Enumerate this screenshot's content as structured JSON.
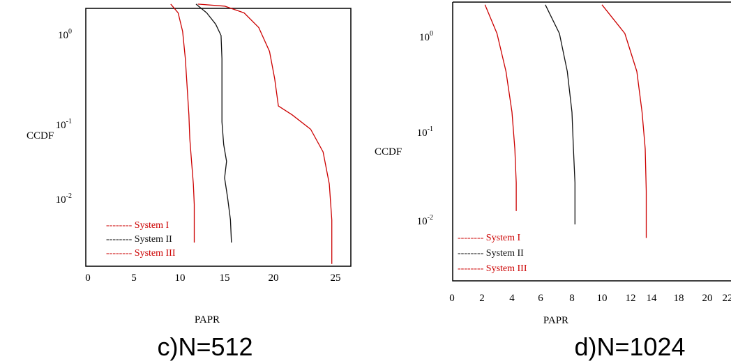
{
  "chart_data": [
    {
      "type": "line",
      "title": "c)N=512",
      "xlabel": "PAPR",
      "ylabel": "CCDF",
      "xticks": [
        "0",
        "5",
        "10",
        "15",
        "20",
        "25"
      ],
      "yticks": [
        {
          "base": "10",
          "exp": "0"
        },
        {
          "base": "10",
          "exp": "-1"
        },
        {
          "base": "10",
          "exp": "-2"
        }
      ],
      "yscale": "log",
      "legend_position": "bottom-left",
      "series": [
        {
          "name": "System I",
          "legend_label": "-------- System I",
          "color": "#cc0000",
          "points": [
            [
              9.0,
              2.0
            ],
            [
              9.8,
              1.6
            ],
            [
              10.3,
              1.0
            ],
            [
              10.6,
              0.5
            ],
            [
              10.8,
              0.25
            ],
            [
              11.0,
              0.12
            ],
            [
              11.1,
              0.06
            ],
            [
              11.3,
              0.03
            ],
            [
              11.5,
              0.015
            ],
            [
              11.6,
              0.008
            ],
            [
              11.6,
              0.0025
            ]
          ]
        },
        {
          "name": "System II",
          "legend_label": "-------- System II",
          "color": "#111111",
          "points": [
            [
              11.8,
              2.0
            ],
            [
              13.0,
              1.6
            ],
            [
              14.0,
              1.2
            ],
            [
              14.6,
              0.9
            ],
            [
              14.7,
              0.5
            ],
            [
              14.7,
              0.2
            ],
            [
              14.7,
              0.1
            ],
            [
              14.9,
              0.05
            ],
            [
              15.2,
              0.03
            ],
            [
              15.0,
              0.018
            ],
            [
              15.3,
              0.01
            ],
            [
              15.6,
              0.005
            ],
            [
              15.7,
              0.0025
            ]
          ]
        },
        {
          "name": "System III",
          "legend_label": "-------- System III",
          "color": "#cc0000",
          "points": [
            [
              12.0,
              2.0
            ],
            [
              15.0,
              1.9
            ],
            [
              17.0,
              1.6
            ],
            [
              18.5,
              1.1
            ],
            [
              19.6,
              0.6
            ],
            [
              20.1,
              0.3
            ],
            [
              20.4,
              0.15
            ],
            [
              21.5,
              0.12
            ],
            [
              23.0,
              0.08
            ],
            [
              24.0,
              0.04
            ],
            [
              24.5,
              0.015
            ],
            [
              24.7,
              0.005
            ],
            [
              24.7,
              0.0013
            ]
          ]
        }
      ]
    },
    {
      "type": "line",
      "title": "d)N=1024",
      "xlabel": "PAPR",
      "ylabel": "CCDF",
      "xticks": [
        "0",
        "2",
        "4",
        "6",
        "8",
        "10",
        "12",
        "14",
        "18",
        "20",
        "22"
      ],
      "yticks": [
        {
          "base": "10",
          "exp": "0"
        },
        {
          "base": "10",
          "exp": "-1"
        },
        {
          "base": "10",
          "exp": "-2"
        }
      ],
      "yscale": "log",
      "legend_position": "bottom-left",
      "series": [
        {
          "name": "System I",
          "legend_label": "-------- System I",
          "color": "#cc0000",
          "points": [
            [
              2.2,
              2.0
            ],
            [
              3.0,
              1.0
            ],
            [
              3.6,
              0.4
            ],
            [
              4.0,
              0.15
            ],
            [
              4.2,
              0.06
            ],
            [
              4.3,
              0.025
            ],
            [
              4.3,
              0.012
            ]
          ]
        },
        {
          "name": "System II",
          "legend_label": "-------- System II",
          "color": "#111111",
          "points": [
            [
              6.3,
              2.0
            ],
            [
              7.2,
              1.0
            ],
            [
              7.7,
              0.4
            ],
            [
              8.0,
              0.15
            ],
            [
              8.1,
              0.06
            ],
            [
              8.2,
              0.025
            ],
            [
              8.2,
              0.0085
            ]
          ]
        },
        {
          "name": "System III",
          "legend_label": "-------- System III",
          "color": "#cc0000",
          "points": [
            [
              10.0,
              2.0
            ],
            [
              11.6,
              1.0
            ],
            [
              12.6,
              0.4
            ],
            [
              13.1,
              0.15
            ],
            [
              13.4,
              0.06
            ],
            [
              13.5,
              0.02
            ],
            [
              13.5,
              0.006
            ]
          ]
        }
      ]
    }
  ]
}
